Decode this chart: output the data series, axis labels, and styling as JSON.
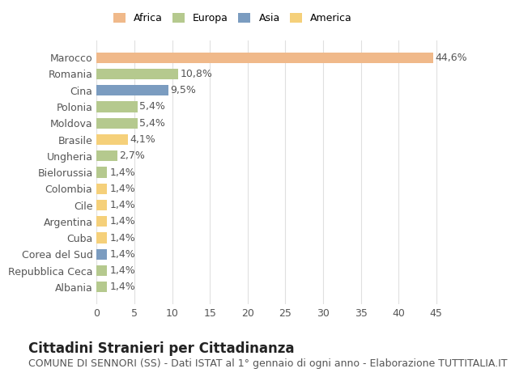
{
  "countries": [
    "Marocco",
    "Romania",
    "Cina",
    "Polonia",
    "Moldova",
    "Brasile",
    "Ungheria",
    "Bielorussia",
    "Colombia",
    "Cile",
    "Argentina",
    "Cuba",
    "Corea del Sud",
    "Repubblica Ceca",
    "Albania"
  ],
  "values": [
    44.6,
    10.8,
    9.5,
    5.4,
    5.4,
    4.1,
    2.7,
    1.4,
    1.4,
    1.4,
    1.4,
    1.4,
    1.4,
    1.4,
    1.4
  ],
  "labels": [
    "44,6%",
    "10,8%",
    "9,5%",
    "5,4%",
    "5,4%",
    "4,1%",
    "2,7%",
    "1,4%",
    "1,4%",
    "1,4%",
    "1,4%",
    "1,4%",
    "1,4%",
    "1,4%",
    "1,4%"
  ],
  "colors": [
    "#F0B98A",
    "#B5C98E",
    "#7B9CC0",
    "#B5C98E",
    "#B5C98E",
    "#F5D07A",
    "#B5C98E",
    "#B5C98E",
    "#F5D07A",
    "#F5D07A",
    "#F5D07A",
    "#F5D07A",
    "#7B9CC0",
    "#B5C98E",
    "#B5C98E"
  ],
  "legend_labels": [
    "Africa",
    "Europa",
    "Asia",
    "America"
  ],
  "legend_colors": [
    "#F0B98A",
    "#B5C98E",
    "#7B9CC0",
    "#F5D07A"
  ],
  "title": "Cittadini Stranieri per Cittadinanza",
  "subtitle": "COMUNE DI SENNORI (SS) - Dati ISTAT al 1° gennaio di ogni anno - Elaborazione TUTTITALIA.IT",
  "xlim": [
    0,
    47
  ],
  "xticks": [
    0,
    5,
    10,
    15,
    20,
    25,
    30,
    35,
    40,
    45
  ],
  "background_color": "#ffffff",
  "grid_color": "#e0e0e0",
  "bar_height": 0.65,
  "label_fontsize": 9,
  "axis_label_fontsize": 9,
  "title_fontsize": 12,
  "subtitle_fontsize": 9
}
